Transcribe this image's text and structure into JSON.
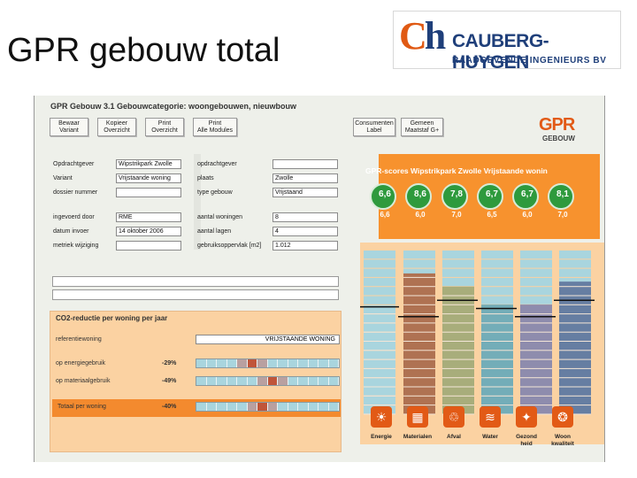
{
  "slide": {
    "title": "GPR gebouw total"
  },
  "logo": {
    "mark_c": "C",
    "mark_h": "h",
    "name": "CAUBERG-HUYGEN",
    "subtitle": "RAADGEVENDE INGENIEURS BV"
  },
  "app": {
    "title": "GPR Gebouw 3.1 Gebouwcategorie: woongebouwen, nieuwbouw",
    "toolbar_left": [
      {
        "line1": "Bewaar",
        "line2": "Variant"
      },
      {
        "line1": "Kopieer",
        "line2": "Overzicht"
      },
      {
        "line1": "Print",
        "line2": "Overzicht"
      },
      {
        "line1": "Print",
        "line2": "Alle Modules"
      }
    ],
    "toolbar_right": [
      {
        "line1": "Consumenten",
        "line2": "Label"
      },
      {
        "line1": "Gemeen",
        "line2": "Maatstaf G+"
      }
    ],
    "gpr_logo": {
      "mark": "GPR",
      "sub": "GEBOUW"
    },
    "project": {
      "left": [
        {
          "label": "Opdrachtgever",
          "value": "Wipstrikpark Zwolle"
        },
        {
          "label": "Variant",
          "value": "Vrijstaande woning"
        },
        {
          "label": "dossier nummer",
          "value": ""
        },
        {
          "label": "ingevoerd door",
          "value": "RME"
        },
        {
          "label": "datum invoer",
          "value": "14 oktober 2006"
        },
        {
          "label": "metriek wijziging",
          "value": ""
        }
      ],
      "right": [
        {
          "label": "opdrachtgever",
          "value": ""
        },
        {
          "label": "plaats",
          "value": "Zwolle"
        },
        {
          "label": "type gebouw",
          "value": "Vrijstaand"
        },
        {
          "label": "aantal woningen",
          "value": "8"
        },
        {
          "label": "aantal lagen",
          "value": "4"
        },
        {
          "label": "gebruiksoppervlak [m2]",
          "value": "1.012"
        }
      ]
    },
    "co2": {
      "title": "CO2-reductie per woning per jaar",
      "reference_label": "referentiewoning",
      "reference_value": "VRIJSTAANDE WONING",
      "rows": [
        {
          "label": "op energiegebruik",
          "percent": "-29%",
          "marker": 0.35
        },
        {
          "label": "op materiaalgebruik",
          "percent": "-49%",
          "marker": 0.5
        },
        {
          "label": "Totaal per woning",
          "percent": "-40%",
          "marker": 0.45
        }
      ]
    },
    "scores": {
      "title": "GPR-scores Wipstrikpark Zwolle Vrijstaande wonin",
      "values": [
        "6,6",
        "8,6",
        "7,8",
        "6,7",
        "6,7",
        "8,1"
      ],
      "reference": [
        "6,6",
        "6,0",
        "7,0",
        "6,5",
        "6,0",
        "7,0"
      ]
    },
    "chart_data": {
      "type": "bar",
      "categories": [
        "Energie",
        "Materialen",
        "Afval",
        "Water",
        "Gezondheid",
        "Woonkwaliteit"
      ],
      "series": [
        {
          "values": [
            6.6,
            8.6,
            7.8,
            6.7,
            6.7,
            8.1
          ]
        },
        {
          "values": [
            6.6,
            6.0,
            7.0,
            6.5,
            6.0,
            7.0
          ]
        }
      ],
      "ylim": [
        0,
        10
      ],
      "colors": [
        "#a9d5de",
        "#b0603a",
        "#a8a66a",
        "#6aa6b2",
        "#8a7fa4",
        "#5a6f98"
      ]
    },
    "categories": [
      {
        "line1": "Energie",
        "line2": ""
      },
      {
        "line1": "Materialen",
        "line2": ""
      },
      {
        "line1": "Afval",
        "line2": ""
      },
      {
        "line1": "Water",
        "line2": ""
      },
      {
        "line1": "Gezond",
        "line2": "heid"
      },
      {
        "line1": "Woon",
        "line2": "kwaliteit"
      }
    ],
    "icons": [
      "energy-icon",
      "materials-icon",
      "waste-icon",
      "water-icon",
      "health-icon",
      "living-quality-icon"
    ]
  }
}
